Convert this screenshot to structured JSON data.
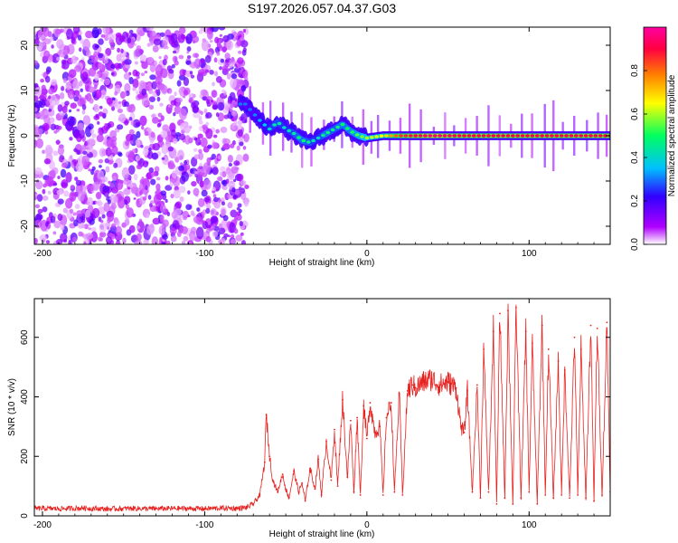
{
  "figure_title": "S197.2026.057.04.37.G03",
  "chart_data": [
    {
      "type": "heatmap",
      "title": "S197.2026.057.04.37.G03",
      "xlabel": "Height of straight line (km)",
      "ylabel": "Frequency (Hz)",
      "xlim": [
        -205,
        150
      ],
      "ylim": [
        -24,
        24
      ],
      "xticks": [
        -200,
        -100,
        0,
        100
      ],
      "yticks": [
        -20,
        -10,
        0,
        10,
        20
      ],
      "xtick_labels": [
        "-200",
        "-100",
        "0",
        "100"
      ],
      "ytick_labels": [
        "-20",
        "-10",
        "0",
        "10",
        "20"
      ],
      "colorbar": {
        "label": "Normalized spectral amplitude",
        "range": [
          0,
          1
        ],
        "ticks": [
          0.0,
          0.2,
          0.4,
          0.6,
          0.8
        ],
        "tick_labels": [
          "0.0",
          "0.2",
          "0.4",
          "0.6",
          "0.8"
        ],
        "colormap": [
          "#ffffff",
          "#b000ff",
          "#3000ff",
          "#00c0ff",
          "#00ff60",
          "#ffff00",
          "#ff8000",
          "#ff0040",
          "#ff00a0"
        ]
      },
      "features": {
        "noise_region_x": [
          -205,
          -74
        ],
        "ridge": {
          "x": [
            -75,
            -70,
            -65,
            -60,
            -55,
            -50,
            -45,
            -40,
            -35,
            -30,
            -25,
            -20,
            -15,
            -10,
            -5,
            0,
            10,
            20,
            40,
            60,
            80,
            100,
            120,
            150
          ],
          "freq": [
            7,
            5,
            3,
            1.5,
            3,
            1.5,
            0.5,
            -1,
            -1.5,
            -0.5,
            0.5,
            1.5,
            2.5,
            1,
            0,
            -0.5,
            0,
            0,
            0,
            0,
            0,
            0,
            0,
            0
          ],
          "amplitude": [
            0.3,
            0.3,
            0.35,
            0.4,
            0.45,
            0.4,
            0.45,
            0.5,
            0.45,
            0.4,
            0.5,
            0.45,
            0.5,
            0.5,
            0.55,
            0.6,
            0.65,
            0.85,
            0.95,
            0.9,
            0.9,
            0.9,
            0.9,
            0.9
          ]
        }
      }
    },
    {
      "type": "line",
      "xlabel": "Height of straight line (km)",
      "ylabel": "SNR (10 * v/v)",
      "xlim": [
        -205,
        150
      ],
      "ylim": [
        0,
        730
      ],
      "xticks": [
        -200,
        -100,
        0,
        100
      ],
      "yticks": [
        0,
        200,
        400,
        600
      ],
      "xtick_labels": [
        "-200",
        "-100",
        "0",
        "100"
      ],
      "ytick_labels": [
        "0",
        "200",
        "400",
        "600"
      ],
      "series": [
        {
          "name": "SNR",
          "color": "#e8201e",
          "x": [
            -205,
            -190,
            -175,
            -160,
            -145,
            -130,
            -115,
            -100,
            -90,
            -80,
            -74,
            -70,
            -66,
            -63,
            -62,
            -60,
            -58,
            -55,
            -52,
            -50,
            -48,
            -45,
            -42,
            -40,
            -38,
            -35,
            -32,
            -30,
            -28,
            -25,
            -22,
            -20,
            -18,
            -15,
            -12,
            -10,
            -8,
            -6,
            -4,
            -2,
            0,
            2,
            5,
            8,
            10,
            12,
            15,
            17,
            20,
            22,
            25,
            28,
            30,
            35,
            40,
            45,
            50,
            55,
            58,
            60,
            62,
            65,
            68,
            70,
            72,
            75,
            78,
            80,
            82,
            85,
            87,
            90,
            92,
            95,
            98,
            100,
            102,
            105,
            108,
            110,
            112,
            115,
            118,
            120,
            122,
            125,
            128,
            130,
            132,
            135,
            138,
            140,
            142,
            145,
            148,
            150
          ],
          "y": [
            25,
            24,
            26,
            23,
            25,
            24,
            25,
            24,
            26,
            25,
            28,
            40,
            70,
            180,
            340,
            200,
            120,
            80,
            140,
            90,
            60,
            150,
            80,
            110,
            50,
            160,
            90,
            190,
            70,
            250,
            120,
            290,
            100,
            390,
            130,
            320,
            80,
            330,
            70,
            370,
            260,
            380,
            280,
            300,
            70,
            330,
            380,
            80,
            410,
            70,
            420,
            440,
            430,
            450,
            460,
            440,
            450,
            430,
            300,
            280,
            420,
            80,
            440,
            60,
            560,
            80,
            620,
            40,
            680,
            60,
            690,
            40,
            700,
            60,
            620,
            80,
            580,
            40,
            640,
            70,
            560,
            60,
            520,
            70,
            490,
            60,
            600,
            70,
            560,
            60,
            640,
            50,
            630,
            70,
            650,
            80
          ]
        }
      ]
    }
  ]
}
